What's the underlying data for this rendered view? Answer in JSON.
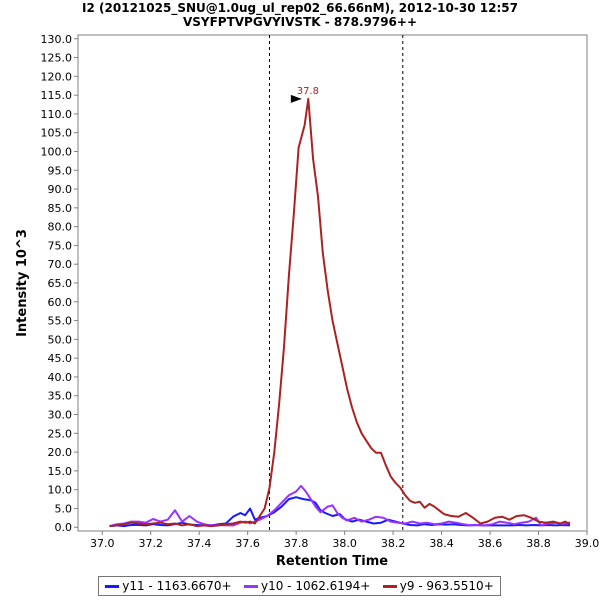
{
  "header": {
    "title_line_1": "I2 (20121025_SNU@1.0ug_ul_rep02_66.66nM), 2012-10-30 12:57",
    "title_line_2": "VSYFPTVPGVYIVSTK - 878.9796++"
  },
  "chart_data": {
    "type": "line",
    "xlabel": "Retention Time",
    "ylabel": "Intensity 10^3",
    "xlim": [
      36.9,
      39.0
    ],
    "ylim": [
      -1.0,
      131.0
    ],
    "x_ticks": [
      "37.0",
      "37.2",
      "37.4",
      "37.6",
      "37.8",
      "38.0",
      "38.2",
      "38.4",
      "38.6",
      "38.8",
      "39.0"
    ],
    "y_ticks": [
      "0.0",
      "5.0",
      "10.0",
      "15.0",
      "20.0",
      "25.0",
      "30.0",
      "35.0",
      "40.0",
      "45.0",
      "50.0",
      "55.0",
      "60.0",
      "65.0",
      "70.0",
      "75.0",
      "80.0",
      "85.0",
      "90.0",
      "95.0",
      "100.0",
      "105.0",
      "110.0",
      "115.0",
      "120.0",
      "125.0",
      "130.0"
    ],
    "integration_bounds": [
      37.69,
      38.24
    ],
    "peak_annotation": {
      "label": "37.8",
      "x": 37.84,
      "y": 114.0
    },
    "legend_position": "bottom",
    "series": [
      {
        "name": "y11 - 1163.6670+",
        "color": "#1a1aff",
        "points": [
          [
            37.03,
            0.3
          ],
          [
            37.06,
            0.5
          ],
          [
            37.09,
            0.3
          ],
          [
            37.12,
            0.6
          ],
          [
            37.15,
            0.6
          ],
          [
            37.18,
            0.5
          ],
          [
            37.21,
            0.8
          ],
          [
            37.24,
            0.6
          ],
          [
            37.27,
            0.5
          ],
          [
            37.3,
            0.8
          ],
          [
            37.33,
            1.2
          ],
          [
            37.36,
            0.7
          ],
          [
            37.39,
            0.6
          ],
          [
            37.42,
            0.5
          ],
          [
            37.45,
            0.5
          ],
          [
            37.48,
            0.8
          ],
          [
            37.51,
            1.0
          ],
          [
            37.54,
            2.8
          ],
          [
            37.57,
            3.8
          ],
          [
            37.59,
            3.2
          ],
          [
            37.61,
            5.0
          ],
          [
            37.63,
            2.0
          ],
          [
            37.65,
            2.5
          ],
          [
            37.68,
            3.0
          ],
          [
            37.71,
            4.0
          ],
          [
            37.74,
            5.5
          ],
          [
            37.77,
            7.5
          ],
          [
            37.8,
            8.0
          ],
          [
            37.83,
            7.5
          ],
          [
            37.86,
            7.2
          ],
          [
            37.88,
            6.5
          ],
          [
            37.9,
            4.5
          ],
          [
            37.92,
            3.8
          ],
          [
            37.95,
            3.0
          ],
          [
            37.98,
            3.5
          ],
          [
            38.0,
            2.2
          ],
          [
            38.03,
            1.5
          ],
          [
            38.06,
            2.0
          ],
          [
            38.09,
            1.5
          ],
          [
            38.12,
            1.0
          ],
          [
            38.15,
            1.2
          ],
          [
            38.18,
            2.0
          ],
          [
            38.21,
            1.5
          ],
          [
            38.24,
            1.0
          ],
          [
            38.27,
            0.6
          ],
          [
            38.3,
            0.5
          ],
          [
            38.33,
            0.8
          ],
          [
            38.36,
            0.6
          ],
          [
            38.39,
            0.8
          ],
          [
            38.42,
            0.7
          ],
          [
            38.45,
            0.8
          ],
          [
            38.48,
            0.6
          ],
          [
            38.51,
            0.5
          ],
          [
            38.54,
            0.6
          ],
          [
            38.57,
            0.5
          ],
          [
            38.6,
            0.5
          ],
          [
            38.63,
            0.5
          ],
          [
            38.66,
            0.5
          ],
          [
            38.69,
            0.5
          ],
          [
            38.72,
            0.6
          ],
          [
            38.75,
            0.5
          ],
          [
            38.78,
            0.6
          ],
          [
            38.81,
            0.5
          ],
          [
            38.84,
            0.6
          ],
          [
            38.87,
            0.5
          ],
          [
            38.9,
            0.6
          ],
          [
            38.93,
            0.5
          ]
        ]
      },
      {
        "name": "y10 - 1062.6194+",
        "color": "#9933ff",
        "points": [
          [
            37.03,
            0.3
          ],
          [
            37.06,
            0.8
          ],
          [
            37.09,
            1.0
          ],
          [
            37.12,
            1.5
          ],
          [
            37.15,
            1.5
          ],
          [
            37.18,
            1.2
          ],
          [
            37.21,
            2.2
          ],
          [
            37.24,
            1.5
          ],
          [
            37.27,
            2.0
          ],
          [
            37.3,
            4.5
          ],
          [
            37.33,
            1.5
          ],
          [
            37.36,
            3.0
          ],
          [
            37.39,
            1.5
          ],
          [
            37.42,
            0.8
          ],
          [
            37.45,
            0.5
          ],
          [
            37.48,
            0.6
          ],
          [
            37.51,
            0.5
          ],
          [
            37.54,
            0.5
          ],
          [
            37.57,
            1.2
          ],
          [
            37.59,
            1.5
          ],
          [
            37.61,
            1.0
          ],
          [
            37.63,
            1.5
          ],
          [
            37.65,
            2.0
          ],
          [
            37.68,
            3.0
          ],
          [
            37.71,
            4.5
          ],
          [
            37.74,
            6.5
          ],
          [
            37.77,
            8.5
          ],
          [
            37.8,
            9.5
          ],
          [
            37.82,
            11.0
          ],
          [
            37.84,
            9.5
          ],
          [
            37.86,
            7.5
          ],
          [
            37.88,
            5.5
          ],
          [
            37.9,
            4.0
          ],
          [
            37.93,
            5.5
          ],
          [
            37.95,
            5.8
          ],
          [
            37.97,
            3.8
          ],
          [
            37.99,
            2.5
          ],
          [
            38.01,
            1.8
          ],
          [
            38.04,
            2.5
          ],
          [
            38.07,
            1.5
          ],
          [
            38.1,
            2.0
          ],
          [
            38.13,
            2.8
          ],
          [
            38.16,
            2.5
          ],
          [
            38.19,
            1.5
          ],
          [
            38.22,
            1.2
          ],
          [
            38.25,
            1.0
          ],
          [
            38.28,
            1.5
          ],
          [
            38.31,
            1.0
          ],
          [
            38.34,
            1.2
          ],
          [
            38.37,
            0.8
          ],
          [
            38.4,
            1.0
          ],
          [
            38.43,
            1.5
          ],
          [
            38.46,
            1.2
          ],
          [
            38.49,
            0.8
          ],
          [
            38.52,
            0.5
          ],
          [
            38.55,
            0.6
          ],
          [
            38.58,
            0.5
          ],
          [
            38.61,
            0.8
          ],
          [
            38.64,
            1.5
          ],
          [
            38.67,
            1.2
          ],
          [
            38.7,
            0.8
          ],
          [
            38.73,
            1.2
          ],
          [
            38.76,
            1.5
          ],
          [
            38.79,
            2.5
          ],
          [
            38.81,
            0.5
          ],
          [
            38.84,
            1.0
          ],
          [
            38.87,
            1.2
          ],
          [
            38.9,
            0.8
          ],
          [
            38.93,
            1.3
          ]
        ]
      },
      {
        "name": "y9 - 963.5510+",
        "color": "#aa2222",
        "points": [
          [
            37.03,
            0.3
          ],
          [
            37.06,
            0.5
          ],
          [
            37.09,
            0.8
          ],
          [
            37.12,
            1.2
          ],
          [
            37.15,
            1.0
          ],
          [
            37.18,
            0.8
          ],
          [
            37.21,
            1.0
          ],
          [
            37.24,
            1.2
          ],
          [
            37.27,
            0.8
          ],
          [
            37.3,
            1.0
          ],
          [
            37.33,
            0.5
          ],
          [
            37.36,
            0.8
          ],
          [
            37.39,
            0.3
          ],
          [
            37.42,
            0.5
          ],
          [
            37.45,
            0.3
          ],
          [
            37.48,
            0.5
          ],
          [
            37.51,
            0.8
          ],
          [
            37.54,
            1.0
          ],
          [
            37.57,
            1.5
          ],
          [
            37.59,
            1.2
          ],
          [
            37.61,
            1.5
          ],
          [
            37.63,
            1.0
          ],
          [
            37.65,
            3.0
          ],
          [
            37.67,
            5.0
          ],
          [
            37.69,
            10.5
          ],
          [
            37.71,
            20.0
          ],
          [
            37.73,
            33.0
          ],
          [
            37.75,
            48.0
          ],
          [
            37.77,
            67.0
          ],
          [
            37.79,
            83.0
          ],
          [
            37.81,
            101.0
          ],
          [
            37.835,
            107.0
          ],
          [
            37.85,
            114.0
          ],
          [
            37.87,
            98.0
          ],
          [
            37.89,
            88.0
          ],
          [
            37.91,
            73.0
          ],
          [
            37.93,
            63.0
          ],
          [
            37.95,
            55.0
          ],
          [
            37.97,
            49.0
          ],
          [
            37.99,
            43.0
          ],
          [
            38.01,
            37.0
          ],
          [
            38.03,
            32.0
          ],
          [
            38.05,
            28.0
          ],
          [
            38.07,
            25.0
          ],
          [
            38.09,
            23.0
          ],
          [
            38.11,
            21.0
          ],
          [
            38.13,
            19.8
          ],
          [
            38.15,
            19.8
          ],
          [
            38.17,
            16.5
          ],
          [
            38.19,
            13.5
          ],
          [
            38.21,
            11.8
          ],
          [
            38.23,
            10.5
          ],
          [
            38.25,
            8.5
          ],
          [
            38.27,
            7.0
          ],
          [
            38.29,
            6.5
          ],
          [
            38.31,
            6.8
          ],
          [
            38.33,
            5.2
          ],
          [
            38.35,
            6.2
          ],
          [
            38.37,
            5.5
          ],
          [
            38.39,
            4.5
          ],
          [
            38.41,
            3.5
          ],
          [
            38.44,
            3.0
          ],
          [
            38.47,
            2.8
          ],
          [
            38.5,
            3.8
          ],
          [
            38.53,
            2.5
          ],
          [
            38.56,
            1.0
          ],
          [
            38.59,
            1.5
          ],
          [
            38.62,
            2.5
          ],
          [
            38.65,
            2.8
          ],
          [
            38.68,
            2.0
          ],
          [
            38.71,
            3.0
          ],
          [
            38.74,
            3.2
          ],
          [
            38.77,
            2.5
          ],
          [
            38.8,
            1.5
          ],
          [
            38.83,
            1.2
          ],
          [
            38.86,
            1.5
          ],
          [
            38.89,
            1.0
          ],
          [
            38.91,
            1.5
          ],
          [
            38.93,
            0.8
          ]
        ]
      }
    ]
  }
}
